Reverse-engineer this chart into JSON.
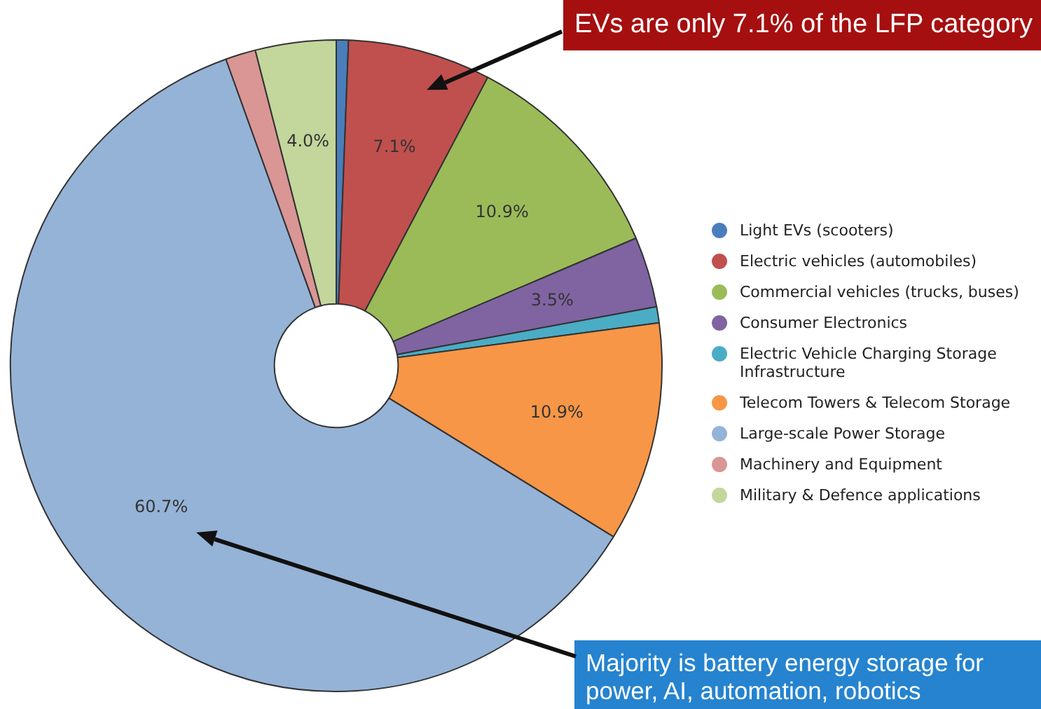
{
  "chart_data": {
    "type": "donut",
    "categories": [
      "Light EVs (scooters)",
      "Electric vehicles (automobiles)",
      "Commercial vehicles (trucks, buses)",
      "Consumer Electronics",
      "Electric Vehicle Charging Storage Infrastructure",
      "Telecom Towers & Telecom Storage",
      "Large-scale Power Storage",
      "Machinery and Equipment",
      "Military & Defence applications"
    ],
    "values": [
      0.6,
      7.1,
      10.9,
      3.5,
      0.8,
      10.9,
      60.7,
      1.5,
      4.0
    ],
    "colors": [
      "#4a7ebb",
      "#c0504d",
      "#9bbb59",
      "#8064a2",
      "#4bacc6",
      "#f79646",
      "#95b3d7",
      "#d99694",
      "#c3d69b"
    ],
    "value_labels": [
      null,
      "7.1%",
      "10.9%",
      "3.5%",
      null,
      "10.9%",
      "60.7%",
      null,
      "4.0%"
    ],
    "legend": "right",
    "annotations": [
      "EVs are only 7.1% of the LFP category",
      "Majority is battery energy storage for power, AI, automation, robotics"
    ]
  }
}
